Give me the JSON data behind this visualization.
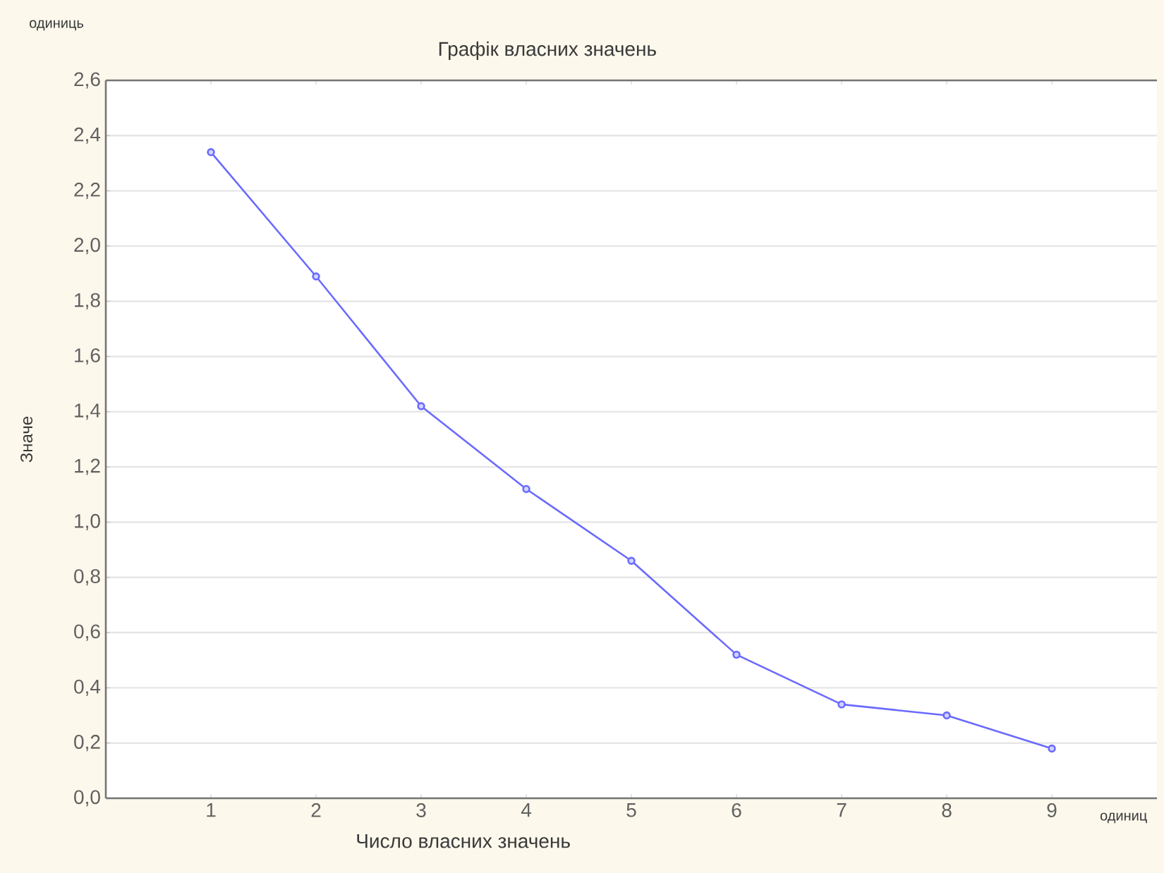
{
  "chart_data": {
    "type": "line",
    "title": "Графік власних значень",
    "xlabel": "Число власних значень",
    "ylabel": "Значе",
    "annotations": [
      "одиниць",
      "одиниц"
    ],
    "x": [
      1,
      2,
      3,
      4,
      5,
      6,
      7,
      8,
      9
    ],
    "series": [
      {
        "color": "#6a6aff",
        "values": [
          2.34,
          1.89,
          1.42,
          1.12,
          0.86,
          0.52,
          0.34,
          0.3,
          0.18
        ]
      }
    ],
    "xlim": [
      0,
      10
    ],
    "xticks": [
      1,
      2,
      3,
      4,
      5,
      6,
      7,
      8,
      9
    ],
    "ylim": [
      0,
      2.6
    ],
    "yticks": [
      {
        "value": 0,
        "label": "0,0"
      },
      {
        "value": 0.2,
        "label": "0,2"
      },
      {
        "value": 0.4,
        "label": "0,4"
      },
      {
        "value": 0.6,
        "label": "0,6"
      },
      {
        "value": 0.8,
        "label": "0,8"
      },
      {
        "value": 1.0,
        "label": "1,0"
      },
      {
        "value": 1.2,
        "label": "1,2"
      },
      {
        "value": 1.4,
        "label": "1,4"
      },
      {
        "value": 1.6,
        "label": "1,6"
      },
      {
        "value": 1.8,
        "label": "1,8"
      },
      {
        "value": 2.0,
        "label": "2,0"
      },
      {
        "value": 2.2,
        "label": "2,2"
      },
      {
        "value": 2.4,
        "label": "2,4"
      },
      {
        "value": 2.6,
        "label": "2,6"
      }
    ],
    "grid": "y",
    "marker": "circle",
    "line_style": "solid"
  }
}
